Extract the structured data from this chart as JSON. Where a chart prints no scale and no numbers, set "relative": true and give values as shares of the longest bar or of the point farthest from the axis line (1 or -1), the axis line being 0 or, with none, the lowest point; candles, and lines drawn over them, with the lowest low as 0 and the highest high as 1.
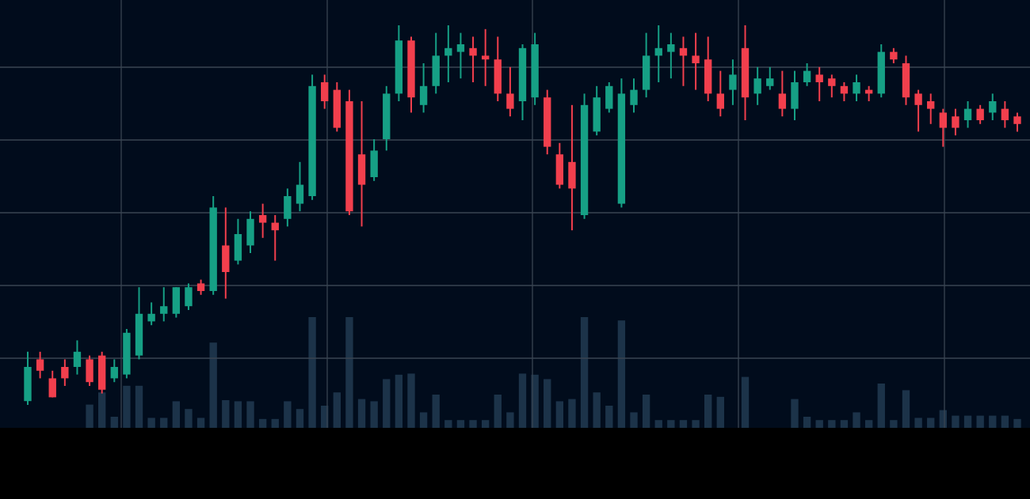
{
  "chart_data": [
    {
      "type": "candlestick",
      "relative": true,
      "grid": true,
      "categories": [
        null,
        null,
        null,
        null,
        null,
        null,
        null,
        null,
        null,
        null,
        null,
        null,
        null,
        null,
        null,
        null,
        null,
        null,
        null,
        null,
        null,
        null,
        null,
        null,
        null,
        null,
        null,
        null,
        null,
        null,
        null,
        null,
        null,
        null,
        null,
        null,
        null,
        null,
        null,
        null,
        null,
        null,
        null,
        null,
        null,
        null,
        null,
        null,
        null,
        null,
        null,
        null,
        null,
        null,
        null,
        null,
        null,
        null,
        null,
        null,
        null,
        null,
        null,
        null,
        null,
        null,
        null,
        null,
        null,
        null,
        null,
        null,
        null,
        null,
        null,
        null,
        null,
        null,
        null,
        null,
        null
      ],
      "ohlc": [
        [
          0.01,
          0.14,
          0,
          0.1
        ],
        [
          0.12,
          0.14,
          0.07,
          0.09
        ],
        [
          0.07,
          0.09,
          0.02,
          0.02
        ],
        [
          0.1,
          0.12,
          0.05,
          0.07
        ],
        [
          0.1,
          0.17,
          0.08,
          0.14
        ],
        [
          0.12,
          0.13,
          0.05,
          0.06
        ],
        [
          0.13,
          0.14,
          0.03,
          0.04
        ],
        [
          0.07,
          0.12,
          0.06,
          0.1
        ],
        [
          0.08,
          0.2,
          0.07,
          0.19
        ],
        [
          0.13,
          0.31,
          0.12,
          0.24
        ],
        [
          0.22,
          0.27,
          0.21,
          0.24
        ],
        [
          0.24,
          0.31,
          0.22,
          0.26
        ],
        [
          0.24,
          0.31,
          0.23,
          0.31
        ],
        [
          0.26,
          0.32,
          0.25,
          0.31
        ],
        [
          0.32,
          0.33,
          0.29,
          0.3
        ],
        [
          0.3,
          0.55,
          0.29,
          0.52
        ],
        [
          0.42,
          0.52,
          0.28,
          0.35
        ],
        [
          0.38,
          0.49,
          0.37,
          0.45
        ],
        [
          0.42,
          0.51,
          0.4,
          0.49
        ],
        [
          0.5,
          0.53,
          0.44,
          0.48
        ],
        [
          0.48,
          0.5,
          0.38,
          0.46
        ],
        [
          0.49,
          0.57,
          0.47,
          0.55
        ],
        [
          0.53,
          0.64,
          0.51,
          0.58
        ],
        [
          0.55,
          0.87,
          0.54,
          0.84
        ],
        [
          0.85,
          0.87,
          0.78,
          0.8
        ],
        [
          0.83,
          0.85,
          0.72,
          0.73
        ],
        [
          0.8,
          0.83,
          0.5,
          0.51
        ],
        [
          0.66,
          0.8,
          0.47,
          0.58
        ],
        [
          0.6,
          0.7,
          0.59,
          0.67
        ],
        [
          0.7,
          0.84,
          0.67,
          0.82
        ],
        [
          0.82,
          1,
          0.8,
          0.96
        ],
        [
          0.96,
          0.97,
          0.77,
          0.81
        ],
        [
          0.79,
          0.9,
          0.77,
          0.84
        ],
        [
          0.84,
          0.98,
          0.82,
          0.92
        ],
        [
          0.92,
          1,
          0.85,
          0.94
        ],
        [
          0.93,
          0.98,
          0.86,
          0.95
        ],
        [
          0.94,
          0.97,
          0.85,
          0.92
        ],
        [
          0.92,
          0.99,
          0.84,
          0.91
        ],
        [
          0.91,
          0.97,
          0.8,
          0.82
        ],
        [
          0.82,
          0.89,
          0.76,
          0.78
        ],
        [
          0.8,
          0.95,
          0.75,
          0.94
        ],
        [
          0.81,
          0.98,
          0.79,
          0.95
        ],
        [
          0.81,
          0.83,
          0.66,
          0.68
        ],
        [
          0.66,
          0.69,
          0.57,
          0.58
        ],
        [
          0.64,
          0.79,
          0.46,
          0.57
        ],
        [
          0.5,
          0.82,
          0.49,
          0.79
        ],
        [
          0.72,
          0.84,
          0.71,
          0.81
        ],
        [
          0.78,
          0.85,
          0.77,
          0.84
        ],
        [
          0.53,
          0.86,
          0.52,
          0.82
        ],
        [
          0.79,
          0.86,
          0.77,
          0.83
        ],
        [
          0.83,
          0.98,
          0.81,
          0.92
        ],
        [
          0.92,
          1,
          0.85,
          0.94
        ],
        [
          0.93,
          0.98,
          0.86,
          0.95
        ],
        [
          0.94,
          0.97,
          0.84,
          0.92
        ],
        [
          0.92,
          0.98,
          0.83,
          0.9
        ],
        [
          0.91,
          0.97,
          0.8,
          0.82
        ],
        [
          0.82,
          0.88,
          0.76,
          0.78
        ],
        [
          0.83,
          0.91,
          0.79,
          0.87
        ],
        [
          0.94,
          1,
          0.75,
          0.81
        ],
        [
          0.82,
          0.89,
          0.79,
          0.86
        ],
        [
          0.84,
          0.89,
          0.83,
          0.86
        ],
        [
          0.82,
          0.88,
          0.76,
          0.78
        ],
        [
          0.78,
          0.88,
          0.75,
          0.85
        ],
        [
          0.85,
          0.9,
          0.84,
          0.88
        ],
        [
          0.87,
          0.89,
          0.8,
          0.85
        ],
        [
          0.86,
          0.87,
          0.81,
          0.84
        ],
        [
          0.84,
          0.85,
          0.8,
          0.82
        ],
        [
          0.82,
          0.87,
          0.8,
          0.85
        ],
        [
          0.83,
          0.84,
          0.8,
          0.82
        ],
        [
          0.82,
          0.95,
          0.81,
          0.93
        ],
        [
          0.93,
          0.94,
          0.9,
          0.91
        ],
        [
          0.9,
          0.92,
          0.79,
          0.81
        ],
        [
          0.82,
          0.83,
          0.72,
          0.79
        ],
        [
          0.8,
          0.82,
          0.74,
          0.78
        ],
        [
          0.77,
          0.78,
          0.68,
          0.73
        ],
        [
          0.76,
          0.78,
          0.71,
          0.73
        ],
        [
          0.75,
          0.8,
          0.73,
          0.78
        ],
        [
          0.78,
          0.79,
          0.74,
          0.75
        ],
        [
          0.77,
          0.82,
          0.75,
          0.8
        ],
        [
          0.78,
          0.8,
          0.73,
          0.75
        ],
        [
          0.76,
          0.77,
          0.72,
          0.74
        ]
      ],
      "colors": [
        "#16a085",
        "#f23f4d",
        "#f23f4d",
        "#f23f4d",
        "#16a085",
        "#f23f4d",
        "#f23f4d",
        "#16a085",
        "#16a085",
        "#16a085",
        "#16a085",
        "#16a085",
        "#16a085",
        "#16a085",
        "#f23f4d",
        "#16a085",
        "#f23f4d",
        "#16a085",
        "#16a085",
        "#f23f4d",
        "#f23f4d",
        "#16a085",
        "#16a085",
        "#16a085",
        "#f23f4d",
        "#f23f4d",
        "#f23f4d",
        "#f23f4d",
        "#16a085",
        "#16a085",
        "#16a085",
        "#f23f4d",
        "#16a085",
        "#16a085",
        "#16a085",
        "#16a085",
        "#f23f4d",
        "#f23f4d",
        "#f23f4d",
        "#f23f4d",
        "#16a085",
        "#16a085",
        "#f23f4d",
        "#f23f4d",
        "#f23f4d",
        "#16a085",
        "#16a085",
        "#16a085",
        "#16a085",
        "#16a085",
        "#16a085",
        "#16a085",
        "#16a085",
        "#f23f4d",
        "#f23f4d",
        "#f23f4d",
        "#f23f4d",
        "#16a085",
        "#f23f4d",
        "#16a085",
        "#16a085",
        "#f23f4d",
        "#16a085",
        "#16a085",
        "#f23f4d",
        "#f23f4d",
        "#f23f4d",
        "#16a085",
        "#f23f4d",
        "#16a085",
        "#f23f4d",
        "#f23f4d",
        "#f23f4d",
        "#f23f4d",
        "#f23f4d",
        "#f23f4d",
        "#16a085",
        "#f23f4d",
        "#16a085",
        "#f23f4d",
        "#f23f4d"
      ]
    },
    {
      "type": "bar",
      "relative": true,
      "color": "#1c3349",
      "categories": [
        null,
        null,
        null,
        null,
        null,
        null,
        null,
        null,
        null,
        null,
        null,
        null,
        null,
        null,
        null,
        null,
        null,
        null,
        null,
        null,
        null,
        null,
        null,
        null,
        null,
        null,
        null,
        null,
        null,
        null,
        null,
        null,
        null,
        null,
        null,
        null,
        null,
        null,
        null,
        null,
        null,
        null,
        null,
        null,
        null,
        null,
        null,
        null,
        null,
        null,
        null,
        null,
        null,
        null,
        null,
        null,
        null,
        null,
        null,
        null,
        null,
        null,
        null,
        null,
        null,
        null,
        null,
        null,
        null,
        null,
        null,
        null,
        null,
        null,
        null,
        null,
        null,
        null,
        null,
        null,
        null
      ],
      "values": [
        null,
        null,
        null,
        null,
        null,
        0.21,
        0.32,
        0.1,
        0.38,
        0.38,
        0.09,
        0.09,
        0.24,
        0.17,
        0.09,
        0.77,
        0.25,
        0.24,
        0.24,
        0.08,
        0.08,
        0.24,
        0.17,
        1,
        0.2,
        0.32,
        1,
        0.26,
        0.24,
        0.44,
        0.48,
        0.49,
        0.14,
        0.3,
        0.07,
        0.07,
        0.07,
        0.07,
        0.3,
        0.14,
        0.49,
        0.48,
        0.44,
        0.24,
        0.26,
        1,
        0.32,
        0.2,
        0.97,
        0.14,
        0.3,
        0.07,
        0.07,
        0.07,
        0.07,
        0.3,
        0.28,
        null,
        0.46,
        null,
        null,
        null,
        0.26,
        0.1,
        0.07,
        0.07,
        0.07,
        0.14,
        0.07,
        0.4,
        0.07,
        0.34,
        0.09,
        0.09,
        0.16,
        0.11,
        0.11,
        0.11,
        0.11,
        0.11,
        0.08
      ]
    }
  ]
}
